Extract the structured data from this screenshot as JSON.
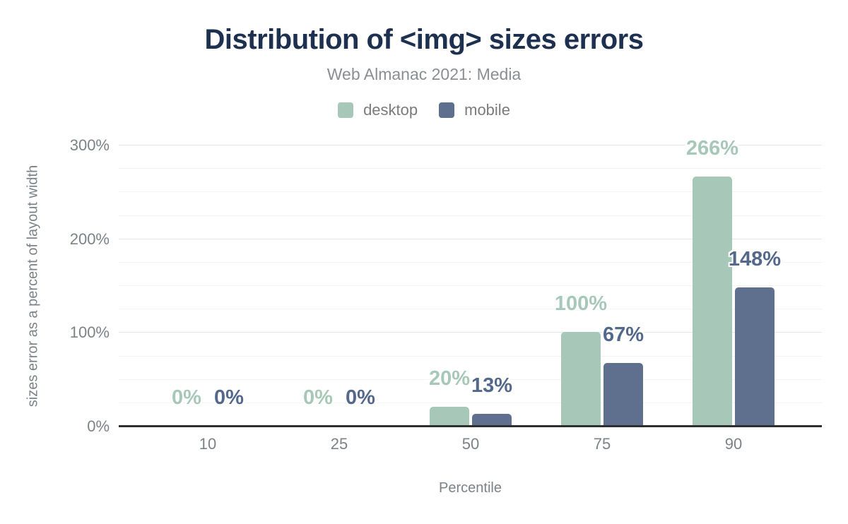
{
  "chart_data": {
    "type": "bar",
    "title": "Distribution of <img> sizes errors",
    "subtitle": "Web Almanac 2021: Media",
    "xlabel": "Percentile",
    "ylabel": "sizes error as a percent of layout width",
    "categories": [
      "10",
      "25",
      "50",
      "75",
      "90"
    ],
    "series": [
      {
        "name": "desktop",
        "color": "#a7c8b8",
        "label_color": "#a7c8b8",
        "values": [
          0,
          0,
          20,
          100,
          266
        ],
        "labels": [
          "0%",
          "0%",
          "20%",
          "100%",
          "266%"
        ]
      },
      {
        "name": "mobile",
        "color": "#5e708e",
        "label_color": "#54688c",
        "values": [
          0,
          0,
          13,
          67,
          148
        ],
        "labels": [
          "0%",
          "0%",
          "13%",
          "67%",
          "148%"
        ]
      }
    ],
    "ylim": [
      0,
      300
    ],
    "yticks": [
      {
        "value": 0,
        "label": "0%"
      },
      {
        "value": 100,
        "label": "100%"
      },
      {
        "value": 200,
        "label": "200%"
      },
      {
        "value": 300,
        "label": "300%"
      }
    ],
    "grid": {
      "minor_step": 25,
      "major_step": 100,
      "horizontal_only": true
    },
    "legend_position": "top",
    "colors": {
      "title": "#1e3050",
      "subtitle": "#8a8f94",
      "axis_line": "#2e2e2e",
      "tick_text": "#7c8288"
    }
  }
}
